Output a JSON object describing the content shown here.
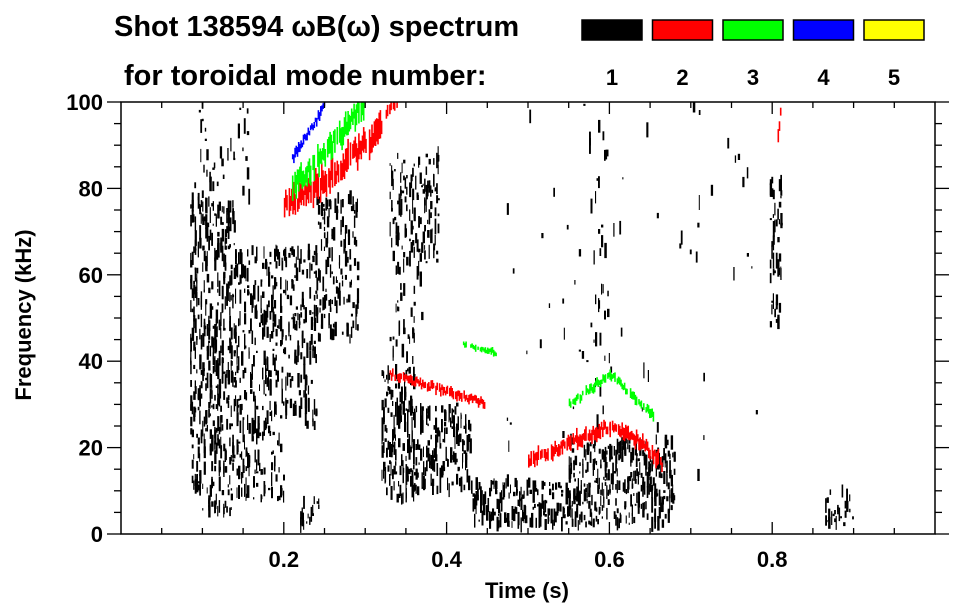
{
  "chart_data": {
    "type": "heatmap",
    "title": "Shot 138594 ωB(ω) spectrum",
    "subtitle": "for toroidal mode number:",
    "xlabel": "Time (s)",
    "ylabel": "Frequency (kHz)",
    "xlim": [
      0,
      1.0
    ],
    "ylim": [
      0,
      100
    ],
    "x_ticks": [
      0.2,
      0.4,
      0.6,
      0.8
    ],
    "x_tick_labels": [
      "0.2",
      "0.4",
      "0.6",
      "0.8"
    ],
    "x_minor_step": 0.05,
    "y_ticks": [
      0,
      20,
      40,
      60,
      80,
      100
    ],
    "y_tick_labels": [
      "0",
      "20",
      "40",
      "60",
      "80",
      "100"
    ],
    "y_minor_step": 5,
    "grid": false,
    "legend": {
      "placement": "top-right",
      "entries": [
        {
          "label": "1",
          "color": "#000000"
        },
        {
          "label": "2",
          "color": "#ff0000"
        },
        {
          "label": "3",
          "color": "#00ff00"
        },
        {
          "label": "4",
          "color": "#0000ff"
        },
        {
          "label": "5",
          "color": "#ffff00"
        }
      ]
    },
    "regions": [
      {
        "mode": 1,
        "t": [
          0.085,
          0.14
        ],
        "f": [
          5,
          78
        ],
        "density": 0.75
      },
      {
        "mode": 1,
        "t": [
          0.14,
          0.2
        ],
        "f": [
          8,
          66
        ],
        "density": 0.6
      },
      {
        "mode": 1,
        "t": [
          0.2,
          0.24
        ],
        "f": [
          25,
          66
        ],
        "density": 0.6
      },
      {
        "mode": 1,
        "t": [
          0.24,
          0.29
        ],
        "f": [
          45,
          78
        ],
        "density": 0.55
      },
      {
        "mode": 1,
        "t": [
          0.32,
          0.36
        ],
        "f": [
          8,
          38
        ],
        "density": 0.9
      },
      {
        "mode": 1,
        "t": [
          0.36,
          0.43
        ],
        "f": [
          10,
          30
        ],
        "density": 0.75
      },
      {
        "mode": 1,
        "t": [
          0.33,
          0.39
        ],
        "f": [
          62,
          88
        ],
        "density": 0.55
      },
      {
        "mode": 1,
        "t": [
          0.33,
          0.37
        ],
        "f": [
          40,
          62
        ],
        "density": 0.25
      },
      {
        "mode": 1,
        "t": [
          0.43,
          0.55
        ],
        "f": [
          2,
          12
        ],
        "density": 0.8
      },
      {
        "mode": 1,
        "t": [
          0.55,
          0.68
        ],
        "f": [
          2,
          22
        ],
        "density": 0.85
      },
      {
        "mode": 1,
        "t": [
          0.575,
          0.6
        ],
        "f": [
          25,
          100
        ],
        "density": 0.12
      },
      {
        "mode": 1,
        "t": [
          0.797,
          0.81
        ],
        "f": [
          48,
          82
        ],
        "density": 0.7
      },
      {
        "mode": 1,
        "t": [
          0.865,
          0.9
        ],
        "f": [
          2,
          10
        ],
        "density": 0.6
      },
      {
        "mode": 1,
        "t": [
          0.22,
          0.245
        ],
        "f": [
          2,
          8
        ],
        "density": 0.6
      },
      {
        "mode": 1,
        "t": [
          0.09,
          0.16
        ],
        "f": [
          78,
          100
        ],
        "density": 0.15
      },
      {
        "mode": 1,
        "t": [
          0.45,
          0.78
        ],
        "f": [
          10,
          100
        ],
        "density": 0.012
      }
    ],
    "ridges": [
      {
        "mode": 2,
        "points": [
          [
            0.2,
            76
          ],
          [
            0.25,
            82
          ],
          [
            0.3,
            90
          ],
          [
            0.32,
            94
          ]
        ],
        "width_khz": 6
      },
      {
        "mode": 2,
        "points": [
          [
            0.325,
            98
          ],
          [
            0.34,
            100
          ]
        ],
        "width_khz": 3
      },
      {
        "mode": 2,
        "points": [
          [
            0.33,
            37
          ],
          [
            0.4,
            33
          ],
          [
            0.45,
            30
          ]
        ],
        "width_khz": 2
      },
      {
        "mode": 2,
        "points": [
          [
            0.5,
            17
          ],
          [
            0.56,
            22
          ],
          [
            0.6,
            25
          ],
          [
            0.64,
            21
          ],
          [
            0.665,
            16
          ]
        ],
        "width_khz": 3
      },
      {
        "mode": 2,
        "points": [
          [
            0.805,
            88
          ],
          [
            0.81,
            100
          ]
        ],
        "width_khz": 3
      },
      {
        "mode": 3,
        "points": [
          [
            0.21,
            80
          ],
          [
            0.25,
            88
          ],
          [
            0.3,
            100
          ]
        ],
        "width_khz": 5
      },
      {
        "mode": 3,
        "points": [
          [
            0.55,
            30
          ],
          [
            0.6,
            37
          ],
          [
            0.655,
            27
          ]
        ],
        "width_khz": 2
      },
      {
        "mode": 3,
        "points": [
          [
            0.42,
            44
          ],
          [
            0.46,
            42
          ]
        ],
        "width_khz": 1.5
      },
      {
        "mode": 4,
        "points": [
          [
            0.21,
            87
          ],
          [
            0.24,
            96
          ],
          [
            0.25,
            100
          ]
        ],
        "width_khz": 2
      }
    ]
  }
}
